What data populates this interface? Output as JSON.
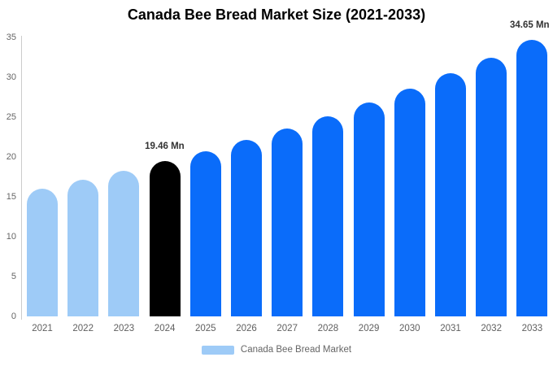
{
  "title": "Canada Bee Bread Market Size (2021-2033)",
  "legend": {
    "label": "Canada Bee Bread Market",
    "swatch_color": "#9ecbf7"
  },
  "chart_data": {
    "type": "bar",
    "title": "Canada Bee Bread Market Size (2021-2033)",
    "unit": "Mn",
    "categories": [
      "2021",
      "2022",
      "2023",
      "2024",
      "2025",
      "2026",
      "2027",
      "2028",
      "2029",
      "2030",
      "2031",
      "2032",
      "2033"
    ],
    "values": [
      16.05,
      17.11,
      18.25,
      19.46,
      20.75,
      22.12,
      23.59,
      25.15,
      26.81,
      28.59,
      30.48,
      32.5,
      34.65
    ],
    "point_roles": [
      "historical",
      "historical",
      "historical",
      "base",
      "forecast",
      "forecast",
      "forecast",
      "forecast",
      "forecast",
      "forecast",
      "forecast",
      "forecast",
      "forecast"
    ],
    "palette": {
      "historical": "#9ecbf7",
      "base": "#000000",
      "forecast": "#0a6cfa"
    },
    "annotations": [
      {
        "category": "2024",
        "text": "19.46 Mn"
      },
      {
        "category": "2033",
        "text": "34.65 Mn"
      }
    ],
    "y_ticks": [
      0,
      5,
      10,
      15,
      20,
      25,
      30,
      35
    ],
    "ylim": [
      0,
      35
    ],
    "grid": false,
    "legend_position": "bottom",
    "axis_color": "#cccccc",
    "tick_label_color": "#666666"
  }
}
